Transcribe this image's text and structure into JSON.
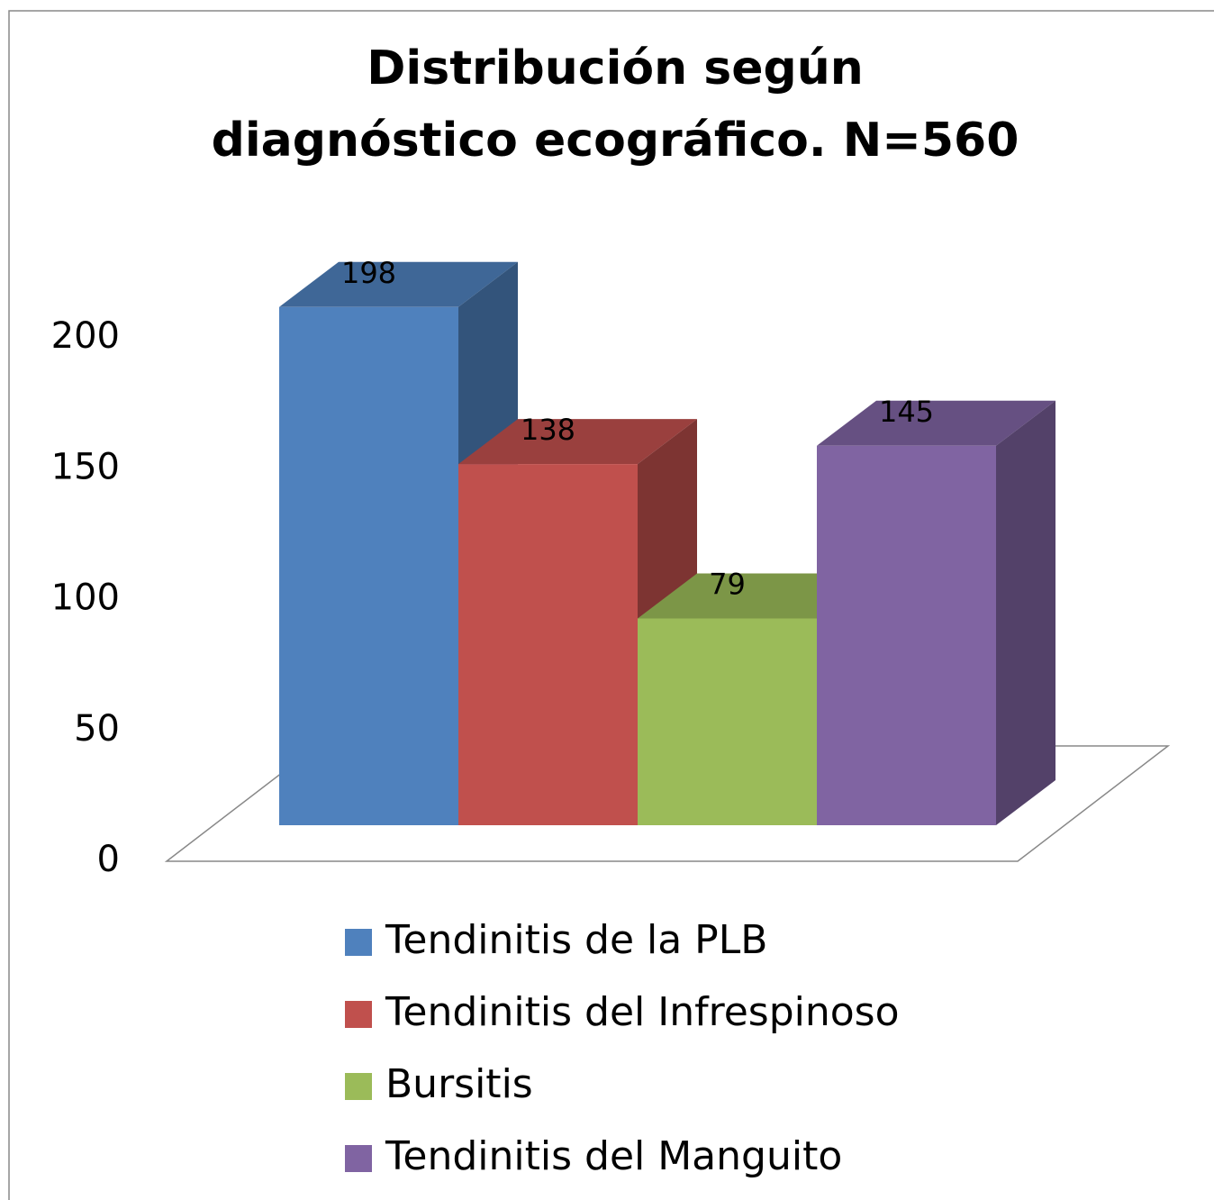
{
  "chart_data": {
    "type": "bar3d",
    "title": "Distribución según diagnóstico ecográfico. N=560",
    "categories": [
      null
    ],
    "series": [
      {
        "name": "Tendinitis de la PLB",
        "color": "#4f81bd",
        "values": [
          198
        ]
      },
      {
        "name": "Tendinitis del Infrespinoso",
        "color": "#c0504d",
        "values": [
          138
        ]
      },
      {
        "name": "Bursitis",
        "color": "#9bbb59",
        "values": [
          79
        ]
      },
      {
        "name": "Tendinitis del Manguito",
        "color": "#8064a2",
        "values": [
          145
        ]
      }
    ],
    "ylim": [
      0,
      200
    ],
    "yticks": [
      0,
      50,
      100,
      150,
      200
    ],
    "grid": false,
    "legend": "bottom"
  }
}
